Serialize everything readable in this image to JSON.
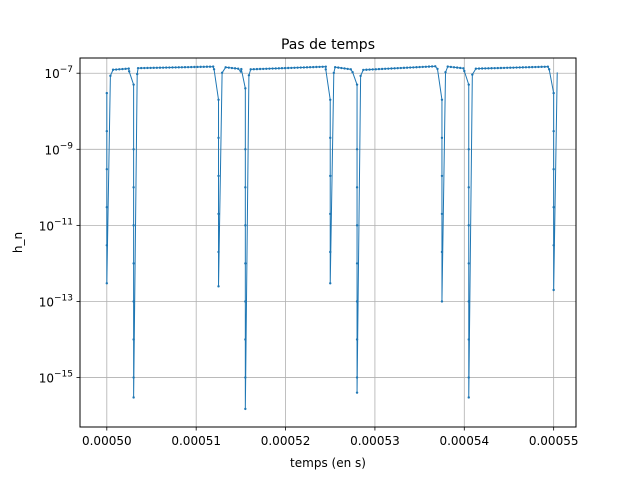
{
  "chart_data": {
    "type": "line",
    "title": "Pas de temps",
    "xlabel": "temps (en s)",
    "ylabel": "h_n",
    "xlim": [
      0.000497,
      0.0005525
    ],
    "ylim_log10": [
      -16.3,
      -6.6
    ],
    "yscale": "log",
    "grid": true,
    "x_ticks": [
      {
        "value": 0.0005,
        "label": "0.00050"
      },
      {
        "value": 0.00051,
        "label": "0.00051"
      },
      {
        "value": 0.00052,
        "label": "0.00052"
      },
      {
        "value": 0.00053,
        "label": "0.00053"
      },
      {
        "value": 0.00054,
        "label": "0.00054"
      },
      {
        "value": 0.00055,
        "label": "0.00055"
      }
    ],
    "y_ticks": [
      {
        "value": 1e-07,
        "base": "10",
        "exp": "−7"
      },
      {
        "value": 1e-09,
        "base": "10",
        "exp": "−9"
      },
      {
        "value": 1e-11,
        "base": "10",
        "exp": "−11"
      },
      {
        "value": 1e-13,
        "base": "10",
        "exp": "−13"
      },
      {
        "value": 1e-15,
        "base": "10",
        "exp": "−15"
      }
    ],
    "series": [
      {
        "color": "#1f77b4",
        "marker": "point",
        "plateau": [
          [
            0.0005,
            1.2e-07
          ],
          [
            0.000503,
            1.35e-07
          ],
          [
            0.0005125,
            1.5e-07
          ],
          [
            0.0005155,
            1.25e-07
          ],
          [
            0.000525,
            1.5e-07
          ],
          [
            0.000528,
            1.2e-07
          ],
          [
            0.0005375,
            1.55e-07
          ],
          [
            0.0005405,
            1.3e-07
          ],
          [
            0.00055,
            1.5e-07
          ]
        ],
        "dips": [
          {
            "x": 0.0005,
            "min": 3e-13,
            "depth_points": [
              3e-08,
              3e-09,
              3e-10,
              3e-11,
              3e-12,
              3e-13
            ]
          },
          {
            "x": 0.000503,
            "min": 3e-16,
            "depth_points": [
              5e-08,
              1e-09,
              1e-10,
              1e-11,
              1e-12,
              1e-13,
              1e-14,
              1e-15,
              3e-16
            ]
          },
          {
            "x": 0.0005125,
            "min": 2.5e-13,
            "depth_points": [
              2e-08,
              2e-09,
              2e-10,
              2e-11,
              2e-12,
              2.5e-13
            ]
          },
          {
            "x": 0.0005155,
            "min": 1.5e-16,
            "depth_points": [
              4e-08,
              1e-09,
              1e-10,
              1e-11,
              1e-12,
              1e-13,
              1e-14,
              1e-15,
              1.5e-16
            ]
          },
          {
            "x": 0.000525,
            "min": 3e-13,
            "depth_points": [
              2e-08,
              2e-09,
              2e-10,
              2e-11,
              2e-12,
              3e-13
            ]
          },
          {
            "x": 0.000528,
            "min": 4e-16,
            "depth_points": [
              5e-08,
              1e-09,
              1e-10,
              1e-11,
              1e-12,
              1e-13,
              1e-14,
              1e-15,
              4e-16
            ]
          },
          {
            "x": 0.0005375,
            "min": 1e-13,
            "depth_points": [
              2e-08,
              2e-09,
              2e-10,
              2e-11,
              2e-12,
              1e-13
            ]
          },
          {
            "x": 0.0005405,
            "min": 3e-16,
            "depth_points": [
              5e-08,
              1e-09,
              1e-10,
              1e-11,
              1e-12,
              1e-13,
              1e-14,
              1e-15,
              3e-16
            ]
          },
          {
            "x": 0.00055,
            "min": 2e-13,
            "depth_points": [
              3e-08,
              3e-09,
              3e-10,
              3e-11,
              3e-12,
              2e-13
            ]
          }
        ]
      }
    ]
  }
}
